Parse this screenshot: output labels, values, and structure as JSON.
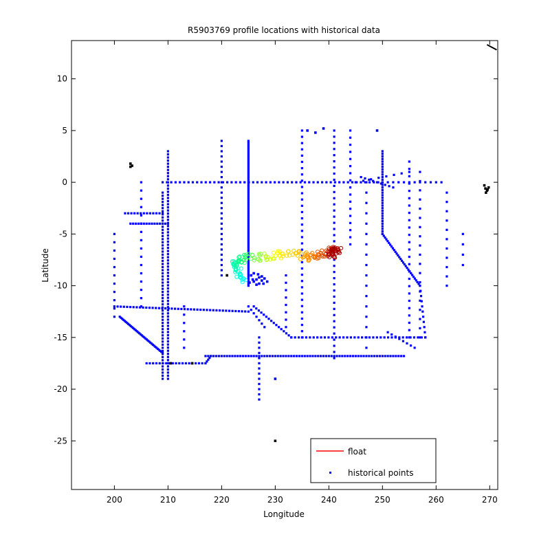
{
  "chart_data": {
    "type": "scatter",
    "title": "R5903769 profile locations with historical data",
    "xlabel": "Longitude",
    "ylabel": "Latitude",
    "xlim": [
      192,
      271.5
    ],
    "ylim": [
      -29.7,
      13.7
    ],
    "xticks": [
      200,
      210,
      220,
      230,
      240,
      250,
      260,
      270
    ],
    "yticks": [
      10,
      5,
      0,
      -5,
      -10,
      -15,
      -20,
      -25
    ],
    "grid": false,
    "legend_position": "bottom-right",
    "series": [
      {
        "name": "float",
        "color": "#ff0000",
        "marker": "circle-open",
        "color_gradient": [
          "#00ffff",
          "#00ff80",
          "#ffff00",
          "#ff8000",
          "#aa0000"
        ],
        "x": [
          224.5,
          223.5,
          222.8,
          222.5,
          223.0,
          223.5,
          224.5,
          226.0,
          227.5,
          229.0,
          230.5,
          232.0,
          233.5,
          235.0,
          236.0,
          237.0,
          238.0,
          239.0,
          240.0,
          241.0,
          242.0
        ],
        "y": [
          -9.5,
          -9.0,
          -8.5,
          -8.0,
          -7.7,
          -7.4,
          -7.4,
          -7.3,
          -7.2,
          -7.1,
          -7.0,
          -7.0,
          -7.0,
          -7.1,
          -7.2,
          -7.2,
          -7.0,
          -6.8,
          -6.7,
          -6.6,
          -6.4
        ]
      },
      {
        "name": "historical points",
        "color": "#0000ff",
        "marker": "dot",
        "segments": [
          {
            "x": [
              209,
              209
            ],
            "y": [
              -19,
              -1
            ],
            "step": 0.3
          },
          {
            "x": [
              210,
              210
            ],
            "y": [
              -19,
              3
            ],
            "step": 0.3
          },
          {
            "x": [
              225,
              225
            ],
            "y": [
              -10,
              4
            ],
            "step": 0.2
          },
          {
            "x": [
              220,
              220
            ],
            "y": [
              -9,
              4
            ],
            "step": 0.5
          },
          {
            "x": [
              250,
              250
            ],
            "y": [
              -5,
              3
            ],
            "step": 0.25
          },
          {
            "x": [
              241,
              241
            ],
            "y": [
              -17,
              5
            ],
            "step": 0.6
          },
          {
            "x": [
              235,
              235
            ],
            "y": [
              -15,
              5
            ],
            "step": 0.6
          },
          {
            "x": [
              255,
              255
            ],
            "y": [
              -15,
              2
            ],
            "step": 0.7
          },
          {
            "x": [
              205,
              205
            ],
            "y": [
              -12,
              0
            ],
            "step": 0.8
          },
          {
            "x": [
              200,
              200
            ],
            "y": [
              -13,
              -5
            ],
            "step": 0.8
          },
          {
            "x": [
              244,
              244
            ],
            "y": [
              -6,
              5
            ],
            "step": 0.7
          },
          {
            "x": [
              262,
              262
            ],
            "y": [
              -10,
              -1
            ],
            "step": 0.9
          },
          {
            "x": [
              265,
              265
            ],
            "y": [
              -8,
              -5
            ],
            "step": 0.9
          },
          {
            "x": [
              257,
              257
            ],
            "y": [
              -15,
              1
            ],
            "step": 0.9
          },
          {
            "x": [
              213,
              213
            ],
            "y": [
              -16,
              -12
            ],
            "step": 0.8
          },
          {
            "x": [
              232,
              232
            ],
            "y": [
              -14,
              -9
            ],
            "step": 0.7
          },
          {
            "x": [
              247,
              247
            ],
            "y": [
              -16,
              0
            ],
            "step": 1.0
          },
          {
            "x": [
              209,
              250
            ],
            "y": [
              0,
              0
            ],
            "step": 0.8
          },
          {
            "x": [
              250,
              261
            ],
            "y": [
              0,
              0
            ],
            "step": 1.0
          },
          {
            "x": [
              200,
              225
            ],
            "y": [
              -12,
              -12.5
            ],
            "step": 0.6
          },
          {
            "x": [
              233,
              258
            ],
            "y": [
              -15,
              -15
            ],
            "step": 0.7
          },
          {
            "x": [
              217,
              254
            ],
            "y": [
              -16.8,
              -16.8
            ],
            "step": 0.5
          },
          {
            "x": [
              206,
              217
            ],
            "y": [
              -17.5,
              -17.5
            ],
            "step": 0.6
          },
          {
            "x": [
              217,
              218
            ],
            "y": [
              -17.5,
              -16.8
            ],
            "step": 0.3
          },
          {
            "x": [
              201,
              209
            ],
            "y": [
              -13,
              -16.5
            ],
            "step": 0.25
          },
          {
            "x": [
              203,
              210
            ],
            "y": [
              -4,
              -4
            ],
            "step": 0.5
          },
          {
            "x": [
              202,
              209
            ],
            "y": [
              -3,
              -3
            ],
            "step": 0.6
          },
          {
            "x": [
              250,
              257
            ],
            "y": [
              -5,
              -10
            ],
            "step": 0.3
          },
          {
            "x": [
              257,
              258
            ],
            "y": [
              -10,
              -15
            ],
            "step": 0.5
          },
          {
            "x": [
              226,
              233
            ],
            "y": [
              -12,
              -15
            ],
            "step": 0.5
          },
          {
            "x": [
              227,
              227
            ],
            "y": [
              -15,
              -21
            ],
            "step": 0.5
          },
          {
            "x": [
              225,
              228
            ],
            "y": [
              -12,
              -14
            ],
            "step": 0.6
          },
          {
            "x": [
              245,
              255
            ],
            "y": [
              0,
              1
            ],
            "step": 1.5
          },
          {
            "x": [
              251,
              256
            ],
            "y": [
              -14.5,
              -16
            ],
            "step": 0.8
          },
          {
            "x": [
              246,
              252
            ],
            "y": [
              0.5,
              -0.5
            ],
            "step": 0.8
          }
        ],
        "points": [
          [
            226,
            -9.6
          ],
          [
            226.5,
            -9.4
          ],
          [
            227,
            -9.2
          ],
          [
            227.5,
            -9.5
          ],
          [
            225.5,
            -9.0
          ],
          [
            226,
            -8.8
          ],
          [
            228,
            -9.3
          ],
          [
            227,
            -9.8
          ],
          [
            226.5,
            -9.9
          ],
          [
            227.5,
            -9.1
          ],
          [
            228.5,
            -9.6
          ],
          [
            225.8,
            -9.4
          ],
          [
            226.8,
            -8.9
          ],
          [
            227.8,
            -9.8
          ],
          [
            225.2,
            -9.7
          ],
          [
            203,
            1.5
          ],
          [
            203,
            1.8
          ],
          [
            203.3,
            1.6
          ],
          [
            221,
            -9
          ],
          [
            214.5,
            -17.5
          ],
          [
            210.5,
            -17.5
          ],
          [
            230,
            -25
          ],
          [
            269,
            -0.3
          ],
          [
            269.2,
            -0.6
          ],
          [
            269.5,
            -0.8
          ],
          [
            269.8,
            -0.5
          ],
          [
            269.3,
            -1.0
          ],
          [
            269.6,
            -0.7
          ],
          [
            239,
            5.2
          ],
          [
            236,
            5.0
          ],
          [
            249,
            5.0
          ],
          [
            237.5,
            4.8
          ],
          [
            230,
            -19
          ]
        ]
      }
    ],
    "legend": [
      {
        "label": "float",
        "style": "line",
        "color": "#ff0000"
      },
      {
        "label": "historical points",
        "style": "marker",
        "color": "#0000ff"
      }
    ]
  }
}
